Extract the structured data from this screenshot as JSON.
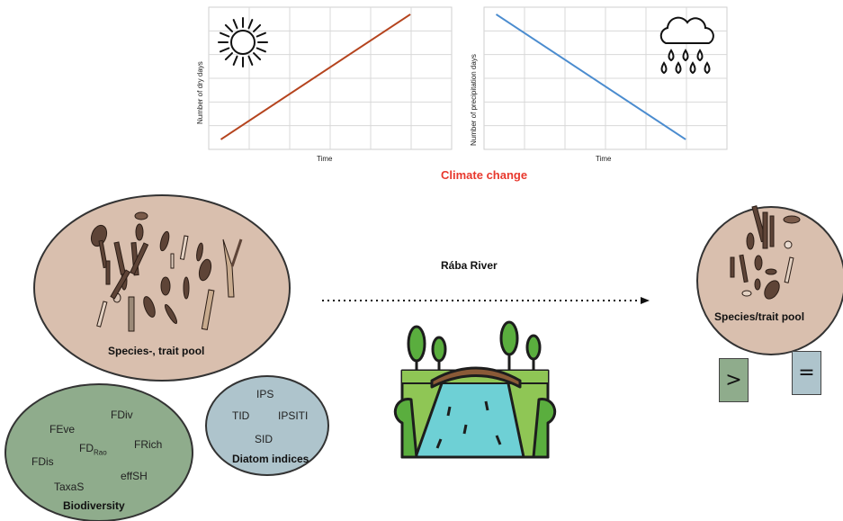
{
  "chart_data": [
    {
      "type": "line",
      "title": "",
      "xlabel": "Time",
      "ylabel": "Number of dry days",
      "series": [
        {
          "values": [
            0,
            1
          ]
        }
      ],
      "trend": "increasing",
      "line_color": "#b5441e",
      "grid": true,
      "icon": "sun-icon"
    },
    {
      "type": "line",
      "title": "",
      "xlabel": "Time",
      "ylabel": "Number of precipitation days",
      "series": [
        {
          "values": [
            1,
            0
          ]
        }
      ],
      "trend": "decreasing",
      "line_color": "#4b8ccf",
      "grid": true,
      "icon": "rain-cloud-icon"
    }
  ],
  "caption": "Climate change",
  "river": {
    "title": "Rába River"
  },
  "upstream_pool": {
    "label": "Species-, trait pool"
  },
  "downstream_pool": {
    "label": "Species/trait pool"
  },
  "biodiversity": {
    "title": "Biodiversity",
    "metrics": {
      "fdiv": "FDiv",
      "feve": "FEve",
      "fd": "FD",
      "fd_sub": "Rao",
      "frich": "FRich",
      "fdis": "FDis",
      "effsh": "effSH",
      "taxas": "TaxaS"
    }
  },
  "diatom_indices": {
    "title": "Diatom indices",
    "metrics": {
      "ips": "IPS",
      "tid": "TID",
      "ipsiti": "IPSITI",
      "sid": "SID"
    }
  },
  "comparisons": {
    "greater": ">",
    "equal": "="
  },
  "colors": {
    "pool_fill": "#d9bfae",
    "biodiversity_fill": "#8fac8c",
    "diatom_fill": "#aec4cc",
    "greater_box": "#8fac8c",
    "equal_box": "#aec4cc",
    "caption": "#e8382d"
  }
}
